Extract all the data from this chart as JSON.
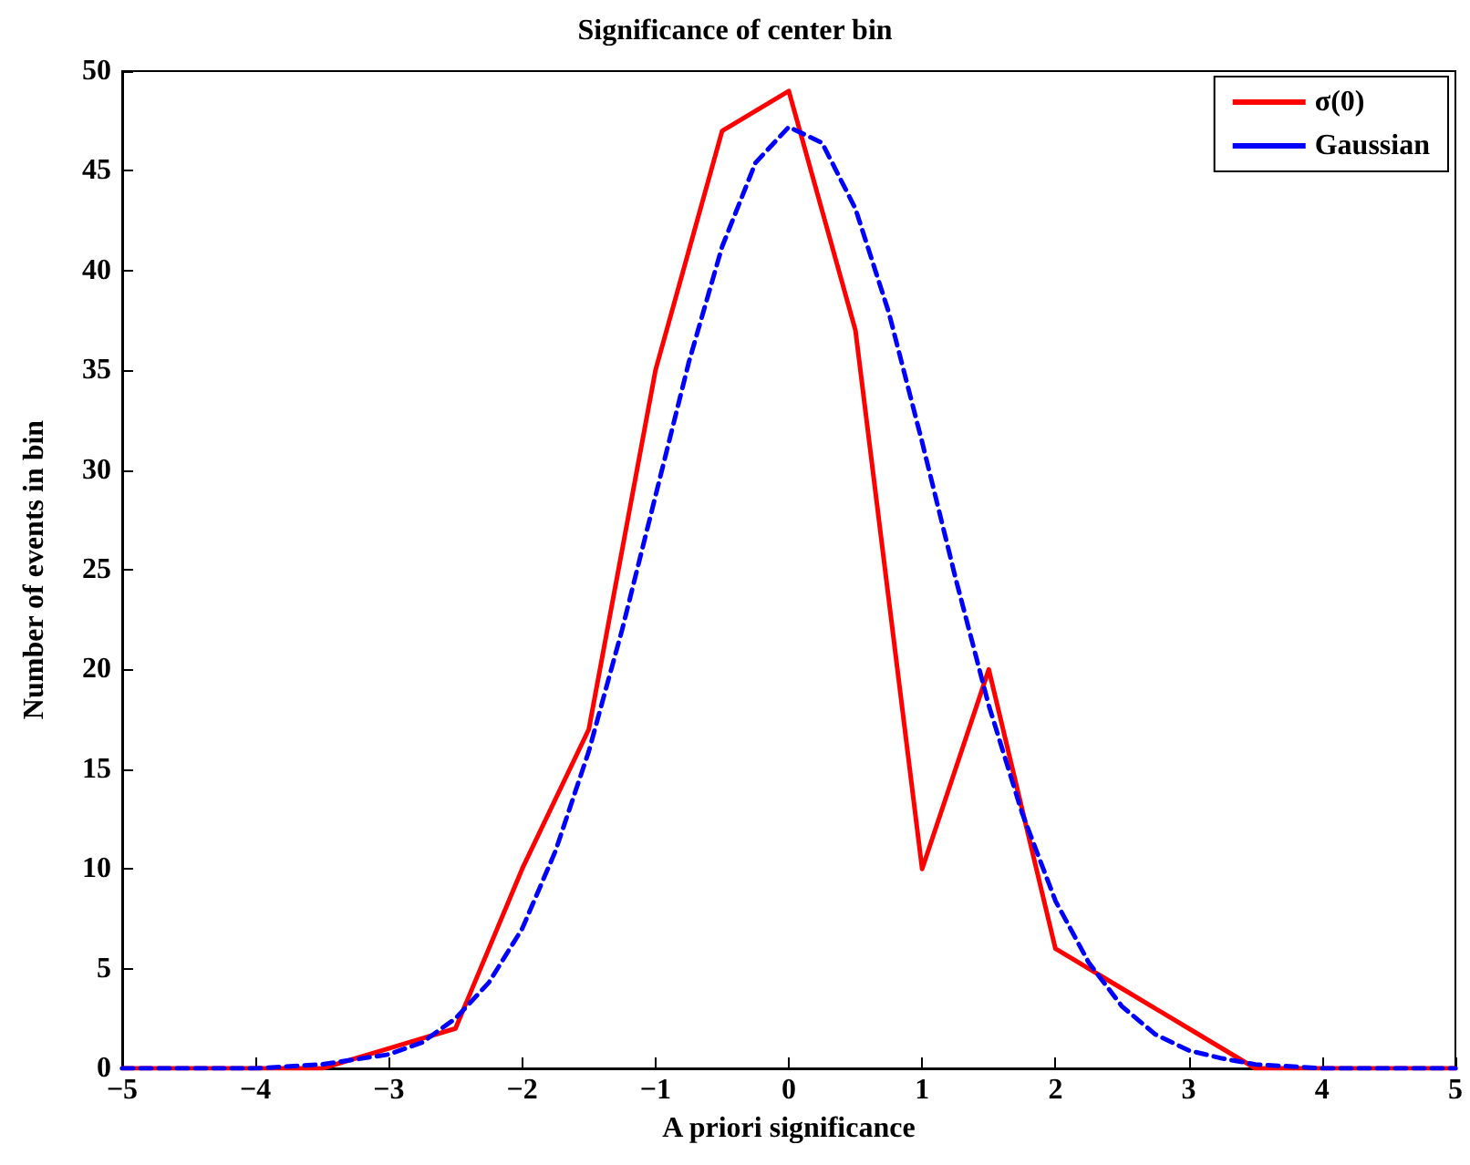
{
  "chart_data": {
    "type": "line",
    "title": "Significance of center bin",
    "xlabel": "A priori significance",
    "ylabel": "Number of events in bin",
    "xlim": [
      -5,
      5
    ],
    "xticks": [
      -5,
      -4,
      -3,
      -2,
      -1,
      0,
      1,
      2,
      3,
      4,
      5
    ],
    "ylim": [
      0,
      50
    ],
    "yticks": [
      0,
      5,
      10,
      15,
      20,
      25,
      30,
      35,
      40,
      45,
      50
    ],
    "grid": false,
    "legend": "top right",
    "marker": "none",
    "series": [
      {
        "name": "σ(0)",
        "color": "#ff0000",
        "line_style": "solid",
        "x": [
          -5,
          -4.5,
          -4,
          -3.5,
          -3,
          -2.5,
          -2,
          -1.5,
          -1,
          -0.5,
          0,
          0.5,
          1,
          1.5,
          2,
          2.5,
          3,
          3.5,
          4,
          4.5,
          5
        ],
        "values": [
          0,
          0,
          0,
          0,
          1,
          2,
          10,
          17,
          35,
          47,
          49,
          37,
          10,
          20,
          6,
          4,
          2,
          0,
          0,
          0,
          0
        ]
      },
      {
        "name": "Gaussian",
        "color": "#0000ff",
        "line_style": "dashed",
        "x": [
          -5,
          -4.5,
          -4,
          -3.5,
          -3,
          -2.75,
          -2.5,
          -2.25,
          -2,
          -1.75,
          -1.5,
          -1.25,
          -1,
          -0.75,
          -0.5,
          -0.25,
          0,
          0.25,
          0.5,
          0.75,
          1,
          1.25,
          1.5,
          1.75,
          2,
          2.25,
          2.5,
          2.75,
          3,
          3.25,
          3.5,
          4,
          4.5,
          5
        ],
        "values": [
          0,
          0,
          0,
          0.2,
          0.7,
          1.3,
          2.5,
          4.3,
          7,
          10.9,
          15.9,
          22,
          28.7,
          35.4,
          41.2,
          45.4,
          47.2,
          46.4,
          43.1,
          37.9,
          31.4,
          24.6,
          18.2,
          12.8,
          8.4,
          5.3,
          3.1,
          1.7,
          0.9,
          0.5,
          0.2,
          0,
          0,
          0
        ]
      }
    ]
  }
}
